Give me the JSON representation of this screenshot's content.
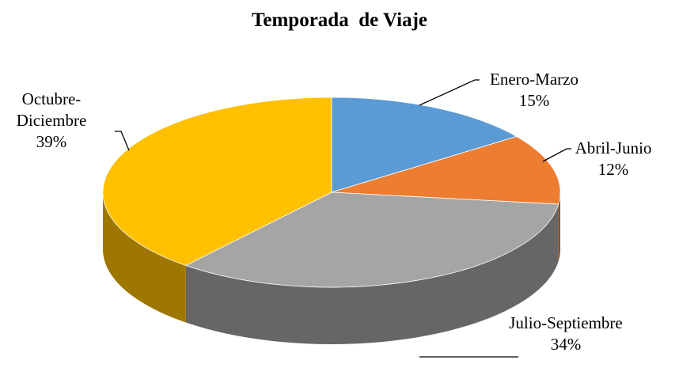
{
  "chart_data": {
    "type": "pie",
    "title": "Temporada  de Viaje",
    "categories": [
      "Enero-Marzo",
      "Abril-Junio",
      "Julio-Septiembre",
      "Octubre-Diciembre"
    ],
    "values": [
      15,
      12,
      34,
      39
    ],
    "value_labels": [
      "15%",
      "12%",
      "34%",
      "39%"
    ],
    "colors": [
      "#5b9bd5",
      "#ed7d31",
      "#a5a5a5",
      "#ffc000"
    ]
  }
}
